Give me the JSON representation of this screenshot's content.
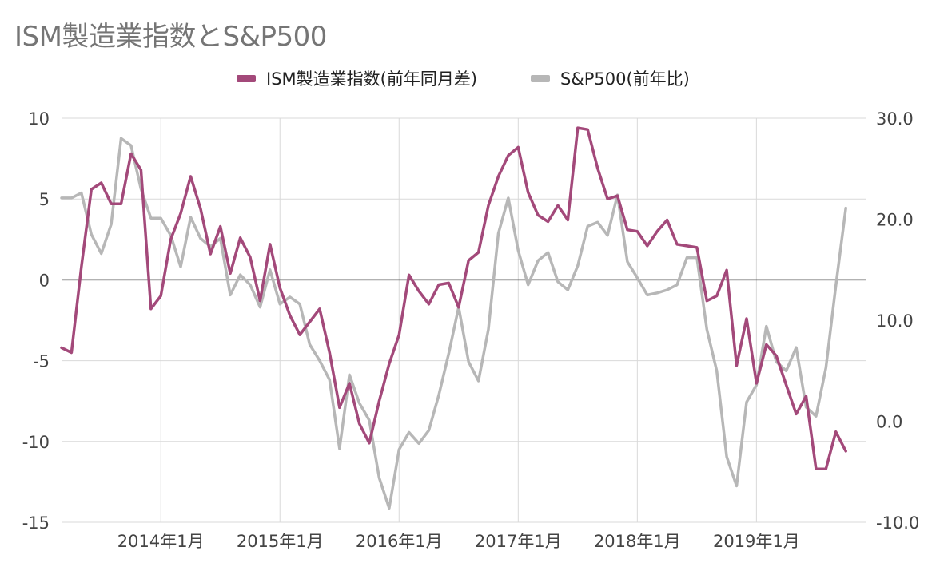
{
  "chart_data": {
    "type": "line",
    "title": "ISM製造業指数とS&P500",
    "legend_position": "top-center",
    "grid": true,
    "x_ticks": [
      "2014年1月",
      "2015年1月",
      "2016年1月",
      "2017年1月",
      "2018年1月",
      "2019年1月"
    ],
    "x_tick_months": [
      "2014-01",
      "2015-01",
      "2016-01",
      "2017-01",
      "2018-01",
      "2019-01"
    ],
    "x_range": [
      "2013-03",
      "2019-12"
    ],
    "y_left": {
      "ticks": [
        "10",
        "5",
        "0",
        "-5",
        "-10",
        "-15"
      ],
      "range": [
        -15,
        10
      ]
    },
    "y_right": {
      "ticks": [
        "30.0",
        "20.0",
        "10.0",
        "0.0",
        "-10.0"
      ],
      "range": [
        -10,
        30
      ]
    },
    "series": [
      {
        "name": "ISM製造業指数(前年同月差)",
        "axis": "left",
        "color": "#a3497a",
        "start_month": "2013-03",
        "values": [
          -4.2,
          -4.5,
          0.8,
          5.6,
          6.0,
          4.7,
          4.7,
          7.8,
          6.8,
          -1.8,
          -1.0,
          2.5,
          4.1,
          6.4,
          4.4,
          1.6,
          3.3,
          0.4,
          2.6,
          1.4,
          -1.3,
          2.2,
          -0.5,
          -2.2,
          -3.4,
          -2.6,
          -1.8,
          -4.5,
          -7.9,
          -6.4,
          -8.9,
          -10.1,
          -7.5,
          -5.2,
          -3.4,
          0.3,
          -0.7,
          -1.5,
          -0.3,
          -0.2,
          -1.7,
          1.2,
          1.7,
          4.6,
          6.4,
          7.7,
          8.2,
          5.4,
          4.0,
          3.6,
          4.6,
          3.7,
          9.4,
          9.3,
          6.9,
          5.0,
          5.2,
          3.1,
          3.0,
          2.1,
          3.0,
          3.7,
          2.2,
          2.1,
          2.0,
          -1.3,
          -1.0,
          0.6,
          -5.3,
          -2.4,
          -6.4,
          -4.0,
          -4.7,
          -6.5,
          -8.3,
          -7.2,
          -11.7,
          -11.7,
          -9.4,
          -10.6
        ]
      },
      {
        "name": "S&P500(前年比)",
        "axis": "right",
        "color": "#b7b7b7",
        "start_month": "2013-03",
        "values": [
          22.1,
          22.1,
          22.6,
          18.5,
          16.6,
          19.5,
          28.0,
          27.3,
          23.0,
          20.1,
          20.1,
          18.4,
          15.3,
          20.2,
          18.1,
          17.3,
          18.1,
          12.5,
          14.5,
          13.5,
          11.3,
          15.0,
          11.6,
          12.3,
          11.6,
          7.6,
          6.0,
          4.1,
          -2.7,
          4.6,
          1.8,
          0.1,
          -5.6,
          -8.6,
          -2.8,
          -1.1,
          -2.2,
          -0.9,
          2.6,
          6.7,
          11.3,
          5.9,
          4.0,
          9.1,
          18.6,
          22.1,
          16.9,
          13.5,
          15.9,
          16.7,
          13.8,
          13.0,
          15.4,
          19.3,
          19.7,
          18.4,
          22.4,
          15.8,
          14.2,
          12.5,
          12.7,
          13.0,
          13.5,
          16.2,
          16.2,
          9.1,
          5.0,
          -3.5,
          -6.4,
          1.9,
          3.6,
          9.4,
          5.9,
          5.0,
          7.3,
          1.4,
          0.5,
          5.3,
          13.4,
          21.1
        ]
      }
    ]
  }
}
